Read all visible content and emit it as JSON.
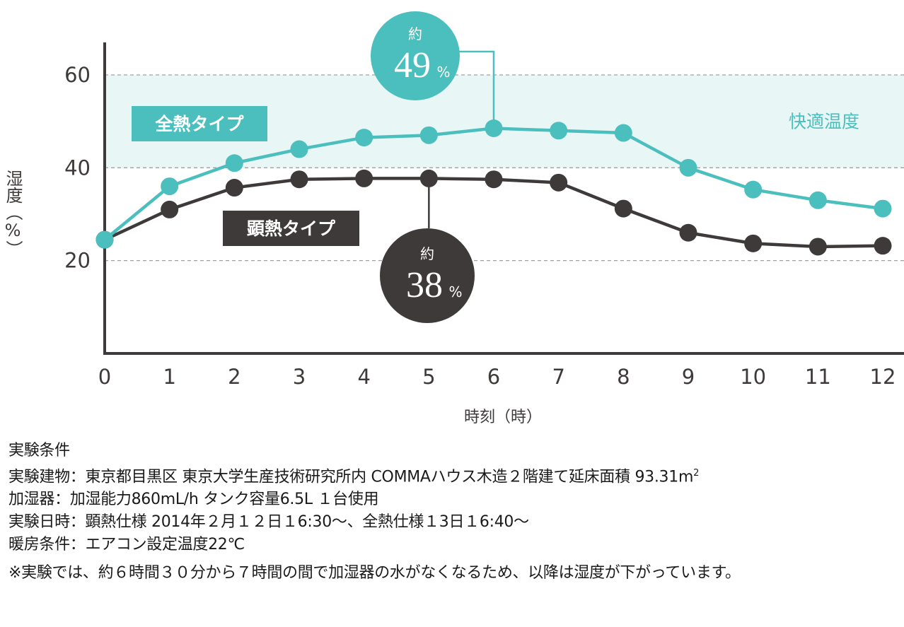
{
  "chart_data": {
    "type": "line",
    "xlabel": "時刻（時）",
    "ylabel": "湿度（%）",
    "x": [
      0,
      1,
      2,
      3,
      4,
      5,
      6,
      7,
      8,
      9,
      10,
      11,
      12
    ],
    "xlim": [
      0,
      12
    ],
    "ylim": [
      0,
      67
    ],
    "yticks": [
      20,
      40,
      60
    ],
    "grid": "horizontal dashed at y ticks",
    "series": [
      {
        "name": "全熱タイプ",
        "color": "#4bbfbd",
        "values": [
          24.5,
          36,
          41,
          44,
          46.5,
          47,
          48.5,
          48,
          47.5,
          40,
          35.3,
          33,
          31.2
        ]
      },
      {
        "name": "顕熱タイプ",
        "color": "#3e3a39",
        "values": [
          24.5,
          31,
          35.7,
          37.5,
          37.7,
          37.7,
          37.5,
          36.8,
          31.2,
          26,
          23.7,
          23,
          23.2
        ]
      }
    ],
    "comfort_band": {
      "label": "快適温度",
      "range": [
        40,
        60
      ],
      "color": "#e9f6f6",
      "text_color": "#4bbfbd"
    },
    "annotations": [
      {
        "series": 0,
        "x": 6,
        "prefix": "約",
        "value": "49",
        "unit": "%"
      },
      {
        "series": 1,
        "x": 5,
        "prefix": "約",
        "value": "38",
        "unit": "%"
      }
    ]
  },
  "notes": {
    "heading": "実験条件",
    "building": "実験建物：東京都目黒区 東京大学生産技術研究所内 COMMAハウス木造２階建て延床面積 93.31m",
    "building_sup": "2",
    "humidifier": "加湿器：加湿能力860mL/h タンク容量6.5L １台使用",
    "datetime": "実験日時：顕熱仕様 2014年２月１２日１6:30～、全熱仕様１3日１6:40～",
    "heating": "暖房条件：エアコン設定温度22℃",
    "footnote": "※実験では、約６時間３０分から７時間の間で加湿器の水がなくなるため、以降は湿度が下がっています。"
  }
}
